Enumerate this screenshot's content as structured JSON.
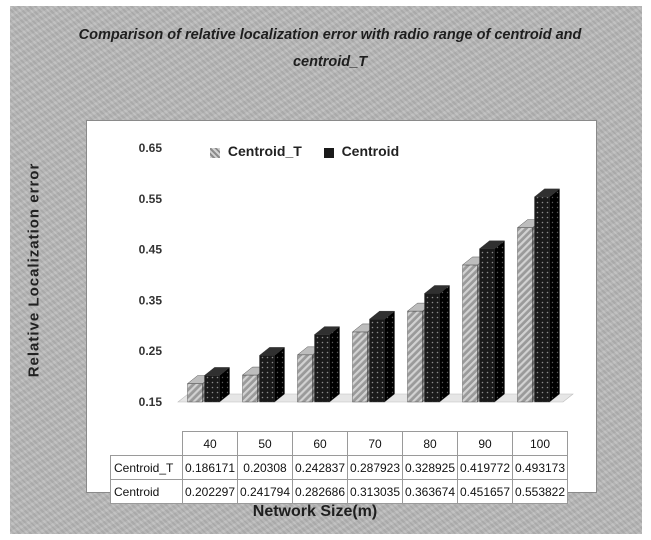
{
  "chart_data": {
    "type": "bar",
    "title": "Comparison of relative localization error with radio range of centroid  and centroid_T",
    "xlabel": "Network Size(m)",
    "ylabel": "Relative Localization  error",
    "categories": [
      "40",
      "50",
      "60",
      "70",
      "80",
      "90",
      "100"
    ],
    "series": [
      {
        "name": "Centroid_T",
        "values": [
          0.186171,
          0.20308,
          0.242837,
          0.287923,
          0.328925,
          0.419772,
          0.493173
        ],
        "color": "#8c8c8c",
        "pattern": "diagonal-stripes"
      },
      {
        "name": "Centroid",
        "values": [
          0.202297,
          0.241794,
          0.282686,
          0.313035,
          0.363674,
          0.451657,
          0.553822
        ],
        "color": "#1a1a1a",
        "pattern": "dots"
      }
    ],
    "table_values": {
      "Centroid_T": [
        "0.186171",
        "0.20308",
        "0.242837",
        "0.287923",
        "0.328925",
        "0.419772",
        "0.493173"
      ],
      "Centroid": [
        "0.202297",
        "0.241794",
        "0.282686",
        "0.313035",
        "0.363674",
        "0.451657",
        "0.553822"
      ]
    },
    "y_ticks": [
      "0.65",
      "0.55",
      "0.45",
      "0.35",
      "0.25",
      "0.15"
    ],
    "ylim": [
      0.15,
      0.65
    ],
    "grid": false,
    "legend_position": "top",
    "data_table": true
  }
}
